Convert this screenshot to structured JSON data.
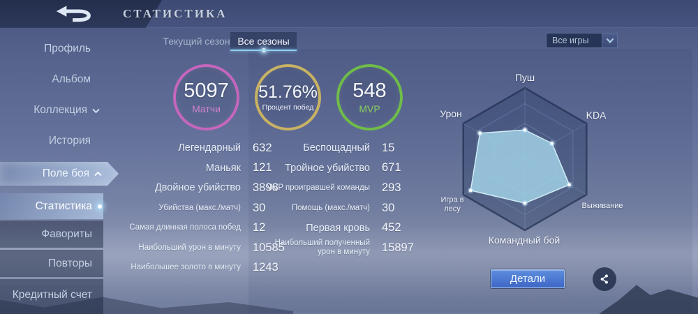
{
  "header": {
    "title": "СТАТИСТИКА"
  },
  "sidebar": {
    "items": [
      {
        "label": "Профиль"
      },
      {
        "label": "Альбом"
      },
      {
        "label": "Коллекция",
        "chevron": "down"
      },
      {
        "label": "История"
      },
      {
        "label": "Поле боя",
        "chevron": "up",
        "state": "expanded"
      },
      {
        "label": "Статистика",
        "state": "selected"
      },
      {
        "label": "Фавориты"
      },
      {
        "label": "Повторы"
      },
      {
        "label": "Кредитный счет"
      }
    ]
  },
  "tabs": [
    {
      "label": "Текущий сезон",
      "active": false
    },
    {
      "label": "Все сезоны",
      "active": true
    }
  ],
  "filter": {
    "value": "Все игры"
  },
  "summary": [
    {
      "value": "5097",
      "label": "Матчи",
      "ring_color": "#c566bd",
      "label_color": "#d383cd"
    },
    {
      "value": "51.76%",
      "label": "Процент побед",
      "ring_color": "#c8b264",
      "label_color": "#eef2f8"
    },
    {
      "value": "548",
      "label": "MVP",
      "ring_color": "#6fbc49",
      "label_color": "#8bd05e"
    }
  ],
  "stats": {
    "left": [
      {
        "label": "Легендарный",
        "value": "632"
      },
      {
        "label": "Маньяк",
        "value": "121"
      },
      {
        "label": "Двойное убийство",
        "value": "3896"
      },
      {
        "label": "Убийства (макс./матч)",
        "value": "30"
      },
      {
        "label": "Самая длинная полоса побед",
        "value": "12"
      },
      {
        "label": "Наибольший урон в минуту",
        "value": "10585"
      },
      {
        "label": "Наибольшее золото в минуту",
        "value": "1243"
      }
    ],
    "right": [
      {
        "label": "Беспощадный",
        "value": "15"
      },
      {
        "label": "Тройное убийство",
        "value": "671"
      },
      {
        "label": "MVP проигравшей команды",
        "value": "293"
      },
      {
        "label": "Помощь (макс./матч)",
        "value": "30"
      },
      {
        "label": "Первая кровь",
        "value": "452"
      },
      {
        "label": "Наибольший полученный урон в минуту",
        "value": "15897"
      }
    ]
  },
  "chart_data": {
    "type": "radar",
    "title": "",
    "axes": [
      {
        "label": "Пуш",
        "value": 0.41
      },
      {
        "label": "KDA",
        "value": 0.44
      },
      {
        "label": "Выживание",
        "value": 0.72
      },
      {
        "label": "Командный бой",
        "value": 0.62
      },
      {
        "label": "Игра в лесу",
        "value": 0.88
      },
      {
        "label": "Урон",
        "value": 0.73
      }
    ],
    "scale": [
      0,
      1
    ],
    "rings": [
      1,
      0.78,
      0.5
    ],
    "grid": "hexagonal with center diagonals",
    "fill_color": "rgba(164,212,232,0.82)",
    "point_color": "#ffffff"
  },
  "actions": {
    "details_label": "Детали"
  }
}
